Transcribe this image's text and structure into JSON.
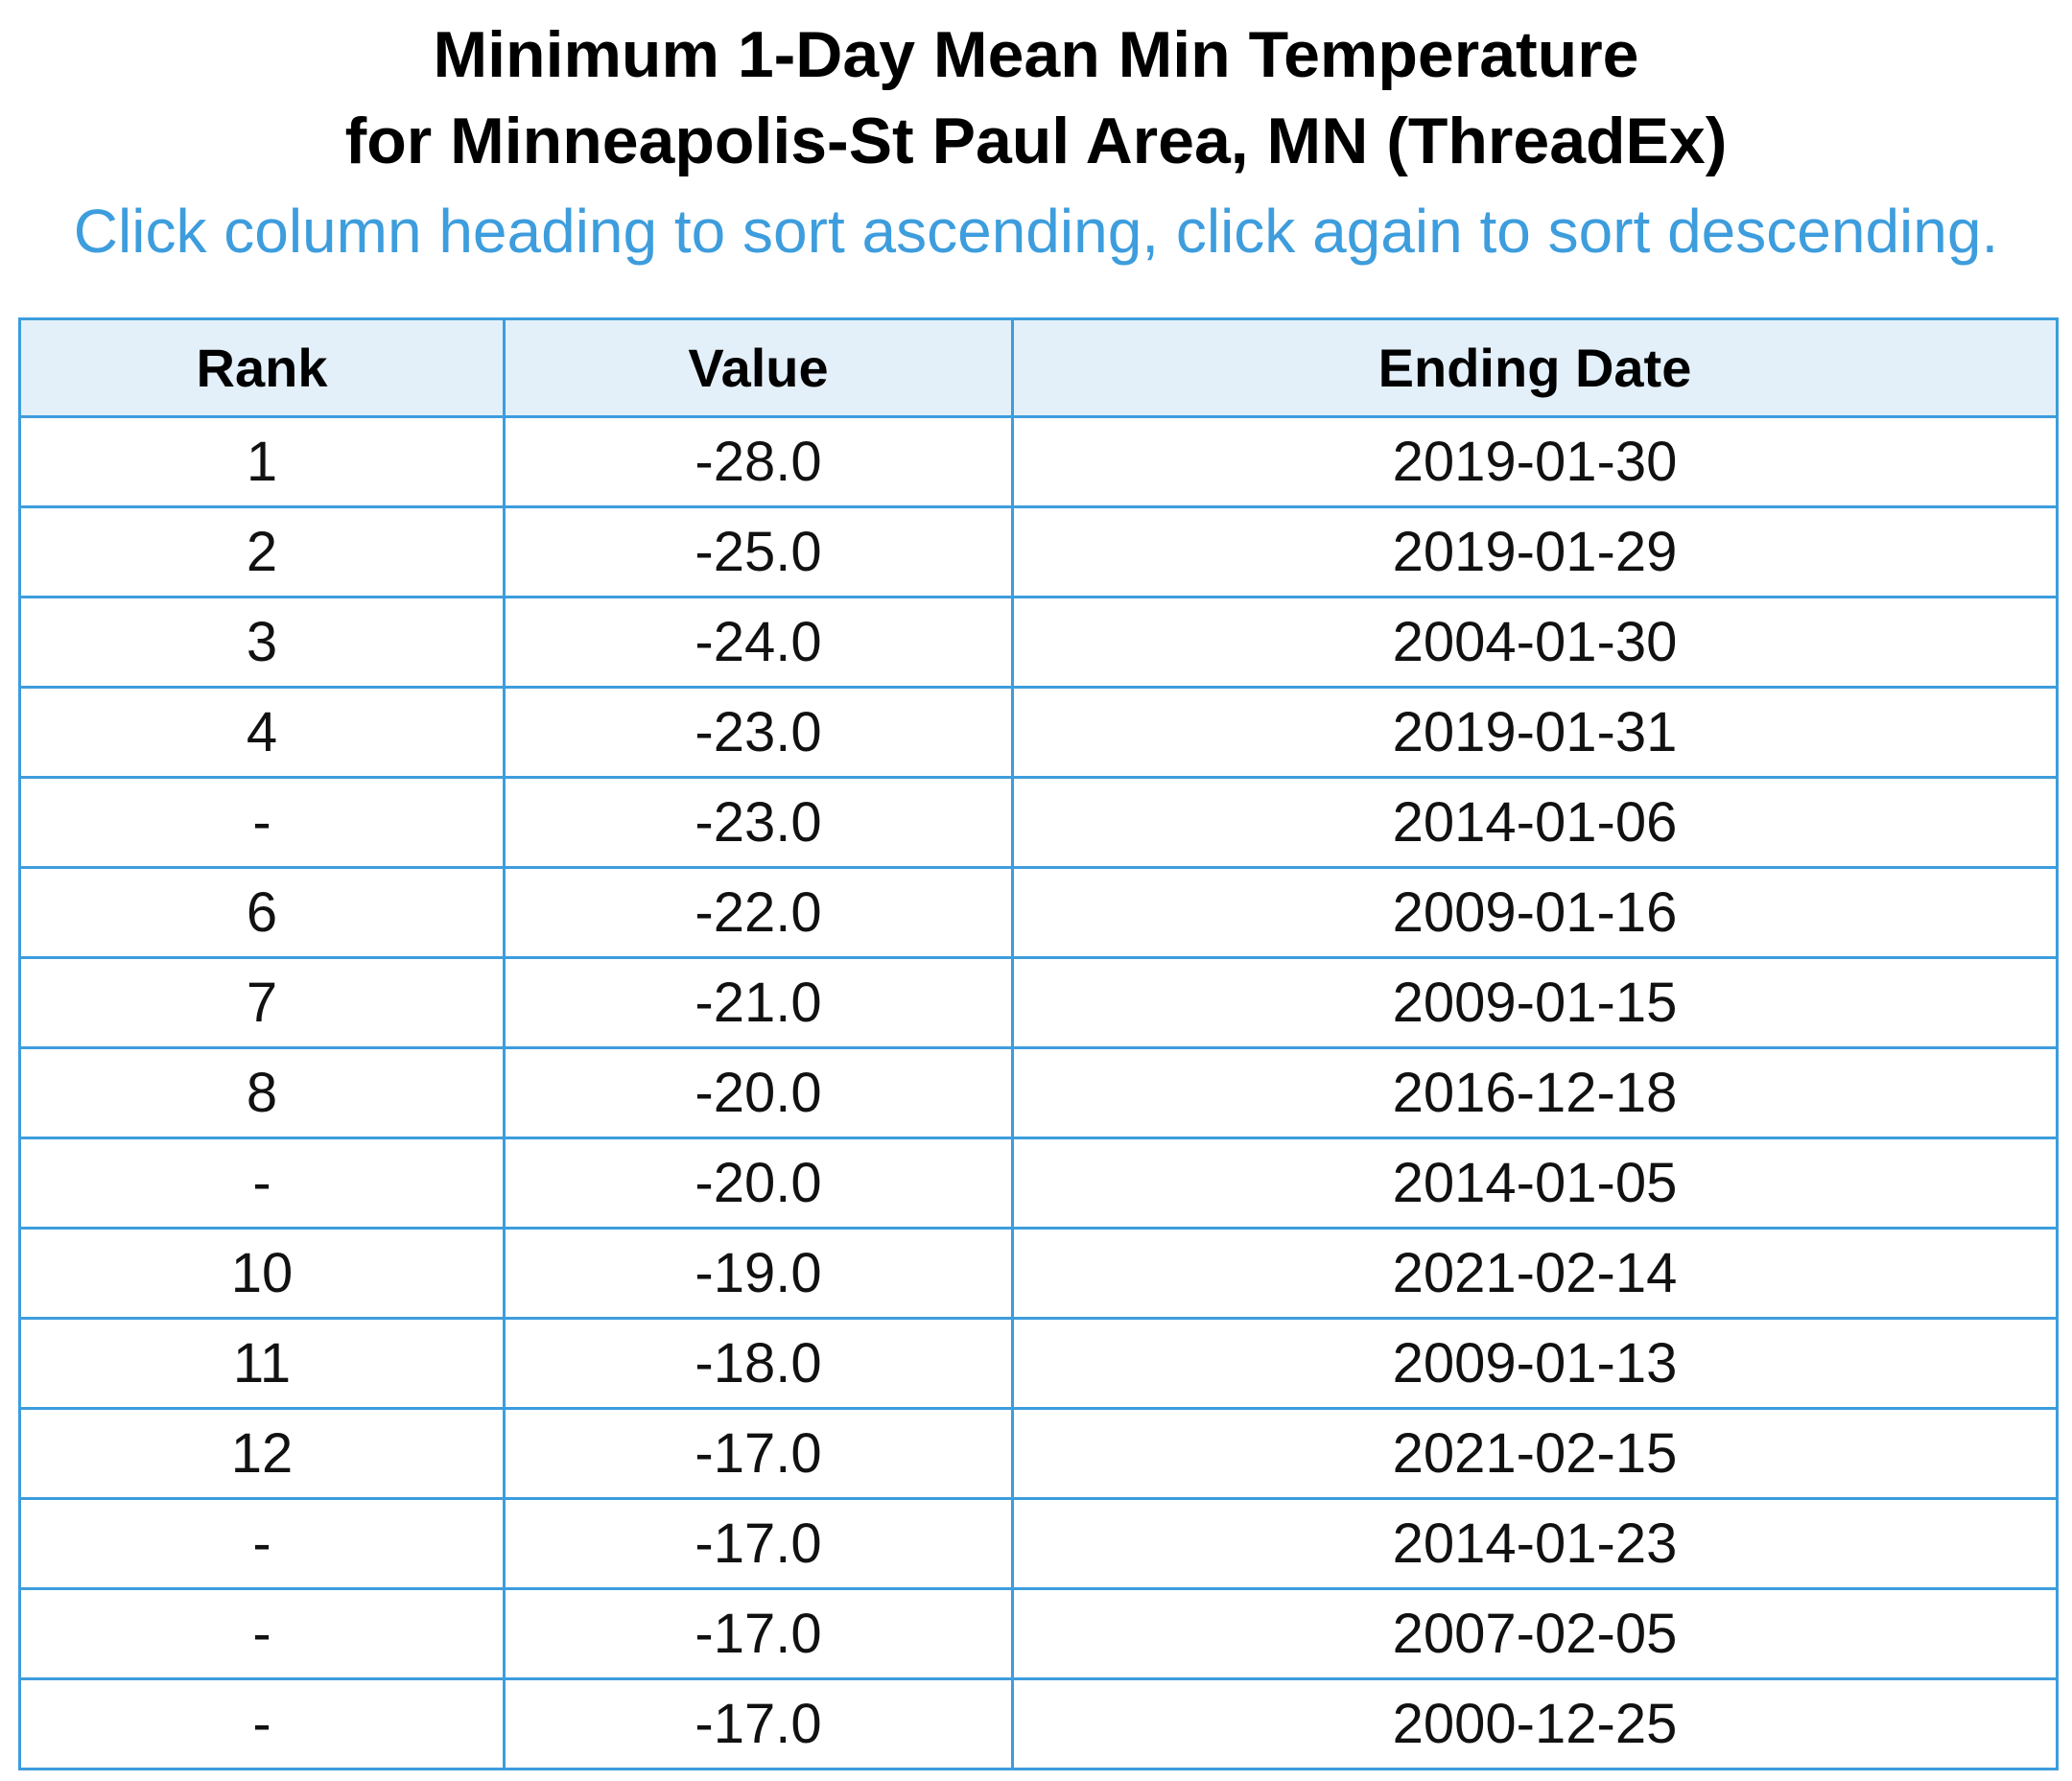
{
  "header": {
    "title_line1": "Minimum 1-Day Mean Min Temperature",
    "title_line2": "for Minneapolis-St Paul Area, MN (ThreadEx)",
    "instruction": "Click column heading to sort ascending, click again to sort descending."
  },
  "table": {
    "columns": {
      "rank": "Rank",
      "value": "Value",
      "date": "Ending Date"
    },
    "rows": [
      {
        "rank": "1",
        "value": "-28.0",
        "date": "2019-01-30"
      },
      {
        "rank": "2",
        "value": "-25.0",
        "date": "2019-01-29"
      },
      {
        "rank": "3",
        "value": "-24.0",
        "date": "2004-01-30"
      },
      {
        "rank": "4",
        "value": "-23.0",
        "date": "2019-01-31"
      },
      {
        "rank": "-",
        "value": "-23.0",
        "date": "2014-01-06"
      },
      {
        "rank": "6",
        "value": "-22.0",
        "date": "2009-01-16"
      },
      {
        "rank": "7",
        "value": "-21.0",
        "date": "2009-01-15"
      },
      {
        "rank": "8",
        "value": "-20.0",
        "date": "2016-12-18"
      },
      {
        "rank": "-",
        "value": "-20.0",
        "date": "2014-01-05"
      },
      {
        "rank": "10",
        "value": "-19.0",
        "date": "2021-02-14"
      },
      {
        "rank": "11",
        "value": "-18.0",
        "date": "2009-01-13"
      },
      {
        "rank": "12",
        "value": "-17.0",
        "date": "2021-02-15"
      },
      {
        "rank": "-",
        "value": "-17.0",
        "date": "2014-01-23"
      },
      {
        "rank": "-",
        "value": "-17.0",
        "date": "2007-02-05"
      },
      {
        "rank": "-",
        "value": "-17.0",
        "date": "2000-12-25"
      }
    ]
  }
}
